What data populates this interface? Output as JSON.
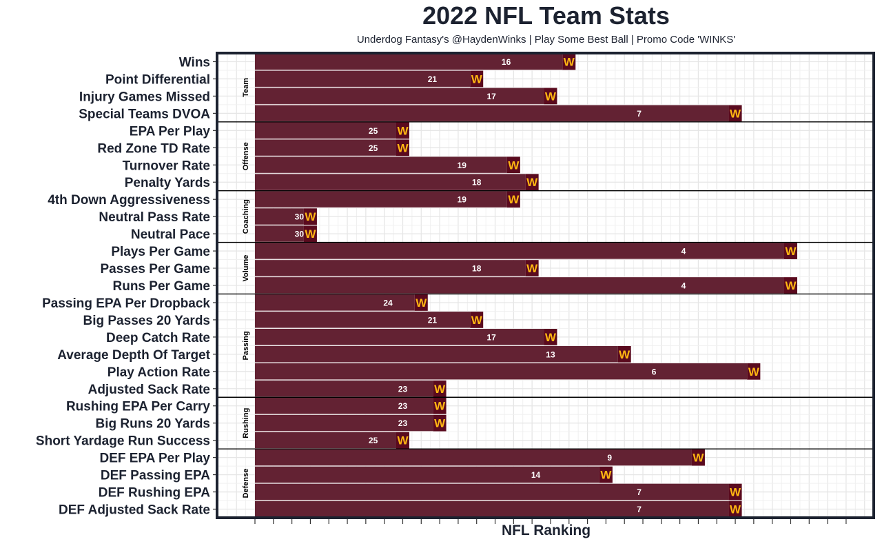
{
  "chart_data": {
    "type": "bar",
    "orientation": "horizontal",
    "title": "2022 NFL Team Stats",
    "subtitle": "Underdog Fantasy's @HaydenWinks | Play Some Best Ball | Promo Code 'WINKS'",
    "xlabel": "NFL Ranking",
    "ylabel": "",
    "xlim": [
      0,
      32
    ],
    "bar_value_rule": "bar length = 33 - rank",
    "grid": true,
    "team_logo": "W",
    "colors": {
      "bar": "#632233",
      "logo_bg": "#5a0a1e",
      "logo_text": "#ffb612",
      "text": "#1c2230",
      "grid": "#e6e6e6",
      "frame": "#1c2230"
    },
    "groups": [
      {
        "name": "Team",
        "stats": [
          {
            "label": "Wins",
            "rank": 16
          },
          {
            "label": "Point Differential",
            "rank": 21
          },
          {
            "label": "Injury Games Missed",
            "rank": 17
          },
          {
            "label": "Special Teams DVOA",
            "rank": 7
          }
        ]
      },
      {
        "name": "Offense",
        "stats": [
          {
            "label": "EPA Per Play",
            "rank": 25
          },
          {
            "label": "Red Zone TD Rate",
            "rank": 25
          },
          {
            "label": "Turnover Rate",
            "rank": 19
          },
          {
            "label": "Penalty Yards",
            "rank": 18
          }
        ]
      },
      {
        "name": "Coaching",
        "stats": [
          {
            "label": "4th Down Aggressiveness",
            "rank": 19
          },
          {
            "label": "Neutral Pass Rate",
            "rank": 30
          },
          {
            "label": "Neutral Pace",
            "rank": 30
          }
        ]
      },
      {
        "name": "Volume",
        "stats": [
          {
            "label": "Plays Per Game",
            "rank": 4
          },
          {
            "label": "Passes Per Game",
            "rank": 18
          },
          {
            "label": "Runs Per Game",
            "rank": 4
          }
        ]
      },
      {
        "name": "Passing",
        "stats": [
          {
            "label": "Passing EPA Per Dropback",
            "rank": 24
          },
          {
            "label": "Big Passes 20 Yards",
            "rank": 21
          },
          {
            "label": "Deep Catch Rate",
            "rank": 17
          },
          {
            "label": "Average Depth Of Target",
            "rank": 13
          },
          {
            "label": "Play Action Rate",
            "rank": 6
          },
          {
            "label": "Adjusted Sack Rate",
            "rank": 23
          }
        ]
      },
      {
        "name": "Rushing",
        "stats": [
          {
            "label": "Rushing EPA Per Carry",
            "rank": 23
          },
          {
            "label": "Big Runs 20 Yards",
            "rank": 23
          },
          {
            "label": "Short Yardage Run Success",
            "rank": 25
          }
        ]
      },
      {
        "name": "Defense",
        "stats": [
          {
            "label": "DEF EPA Per Play",
            "rank": 9
          },
          {
            "label": "DEF Passing EPA",
            "rank": 14
          },
          {
            "label": "DEF Rushing EPA",
            "rank": 7
          },
          {
            "label": "DEF Adjusted Sack Rate",
            "rank": 7
          }
        ]
      }
    ]
  }
}
